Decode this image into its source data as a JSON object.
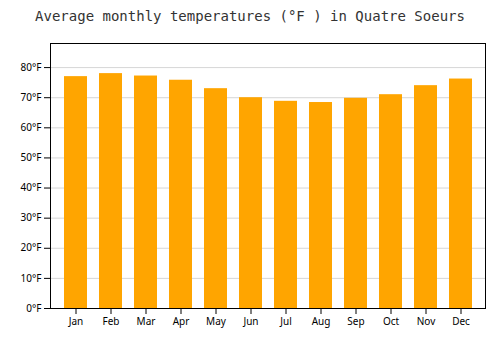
{
  "chart_data": {
    "type": "bar",
    "title": "Average monthly temperatures (°F ) in Quatre Soeurs",
    "categories": [
      "Jan",
      "Feb",
      "Mar",
      "Apr",
      "May",
      "Jun",
      "Jul",
      "Aug",
      "Sep",
      "Oct",
      "Nov",
      "Dec"
    ],
    "values": [
      77.0,
      78.0,
      77.2,
      75.8,
      73.0,
      70.0,
      68.8,
      68.4,
      69.8,
      71.0,
      74.0,
      76.2
    ],
    "color": "#FFA500",
    "ylim": [
      0,
      88
    ],
    "yticks": [
      {
        "value": 0,
        "label": "0°F"
      },
      {
        "value": 10,
        "label": "10°F"
      },
      {
        "value": 20,
        "label": "20°F"
      },
      {
        "value": 30,
        "label": "30°F"
      },
      {
        "value": 40,
        "label": "40°F"
      },
      {
        "value": 50,
        "label": "50°F"
      },
      {
        "value": 60,
        "label": "60°F"
      },
      {
        "value": 70,
        "label": "70°F"
      },
      {
        "value": 80,
        "label": "80°F"
      }
    ],
    "grid": true
  }
}
